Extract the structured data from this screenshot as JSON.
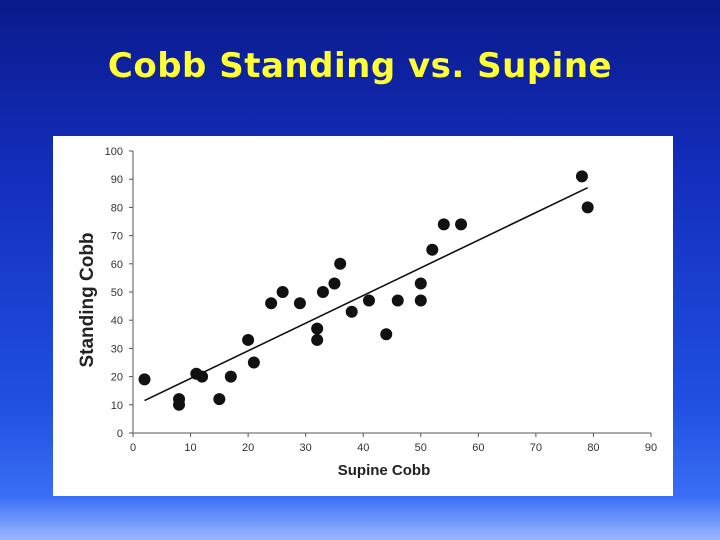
{
  "slide": {
    "title": "Cobb Standing vs. Supine"
  },
  "chart_data": {
    "type": "scatter",
    "title": "Cobb Standing vs. Supine",
    "xlabel": "Supine Cobb",
    "ylabel": "Standing Cobb",
    "xlim": [
      0,
      90
    ],
    "ylim": [
      0,
      100
    ],
    "x_ticks": [
      0,
      10,
      20,
      30,
      40,
      50,
      60,
      70,
      80,
      90
    ],
    "y_ticks": [
      0,
      10,
      20,
      30,
      40,
      50,
      60,
      70,
      80,
      90,
      100
    ],
    "x_tick_labels": [
      "0",
      "10",
      "20",
      "30",
      "40",
      "50",
      "60",
      "70",
      "80",
      "90"
    ],
    "y_tick_labels": [
      "0",
      "10",
      "20",
      "30",
      "40",
      "50",
      "60",
      "70",
      "80",
      "90",
      "100"
    ],
    "grid": false,
    "legend": "none",
    "marker_color": "#111111",
    "trendline": {
      "x": [
        2,
        79
      ],
      "y": [
        11.5,
        87
      ]
    },
    "series": [
      {
        "x": [
          2,
          8,
          8,
          11,
          12,
          15,
          17,
          20,
          21,
          24,
          26,
          29,
          32,
          32,
          33,
          35,
          36,
          38,
          41,
          44,
          46,
          50,
          50,
          52,
          54,
          57,
          78,
          79
        ],
        "y": [
          19,
          12,
          10,
          21,
          20,
          12,
          20,
          33,
          25,
          46,
          50,
          46,
          37,
          33,
          50,
          53,
          60,
          43,
          47,
          35,
          47,
          53,
          47,
          65,
          74,
          74,
          91,
          80
        ]
      }
    ]
  }
}
